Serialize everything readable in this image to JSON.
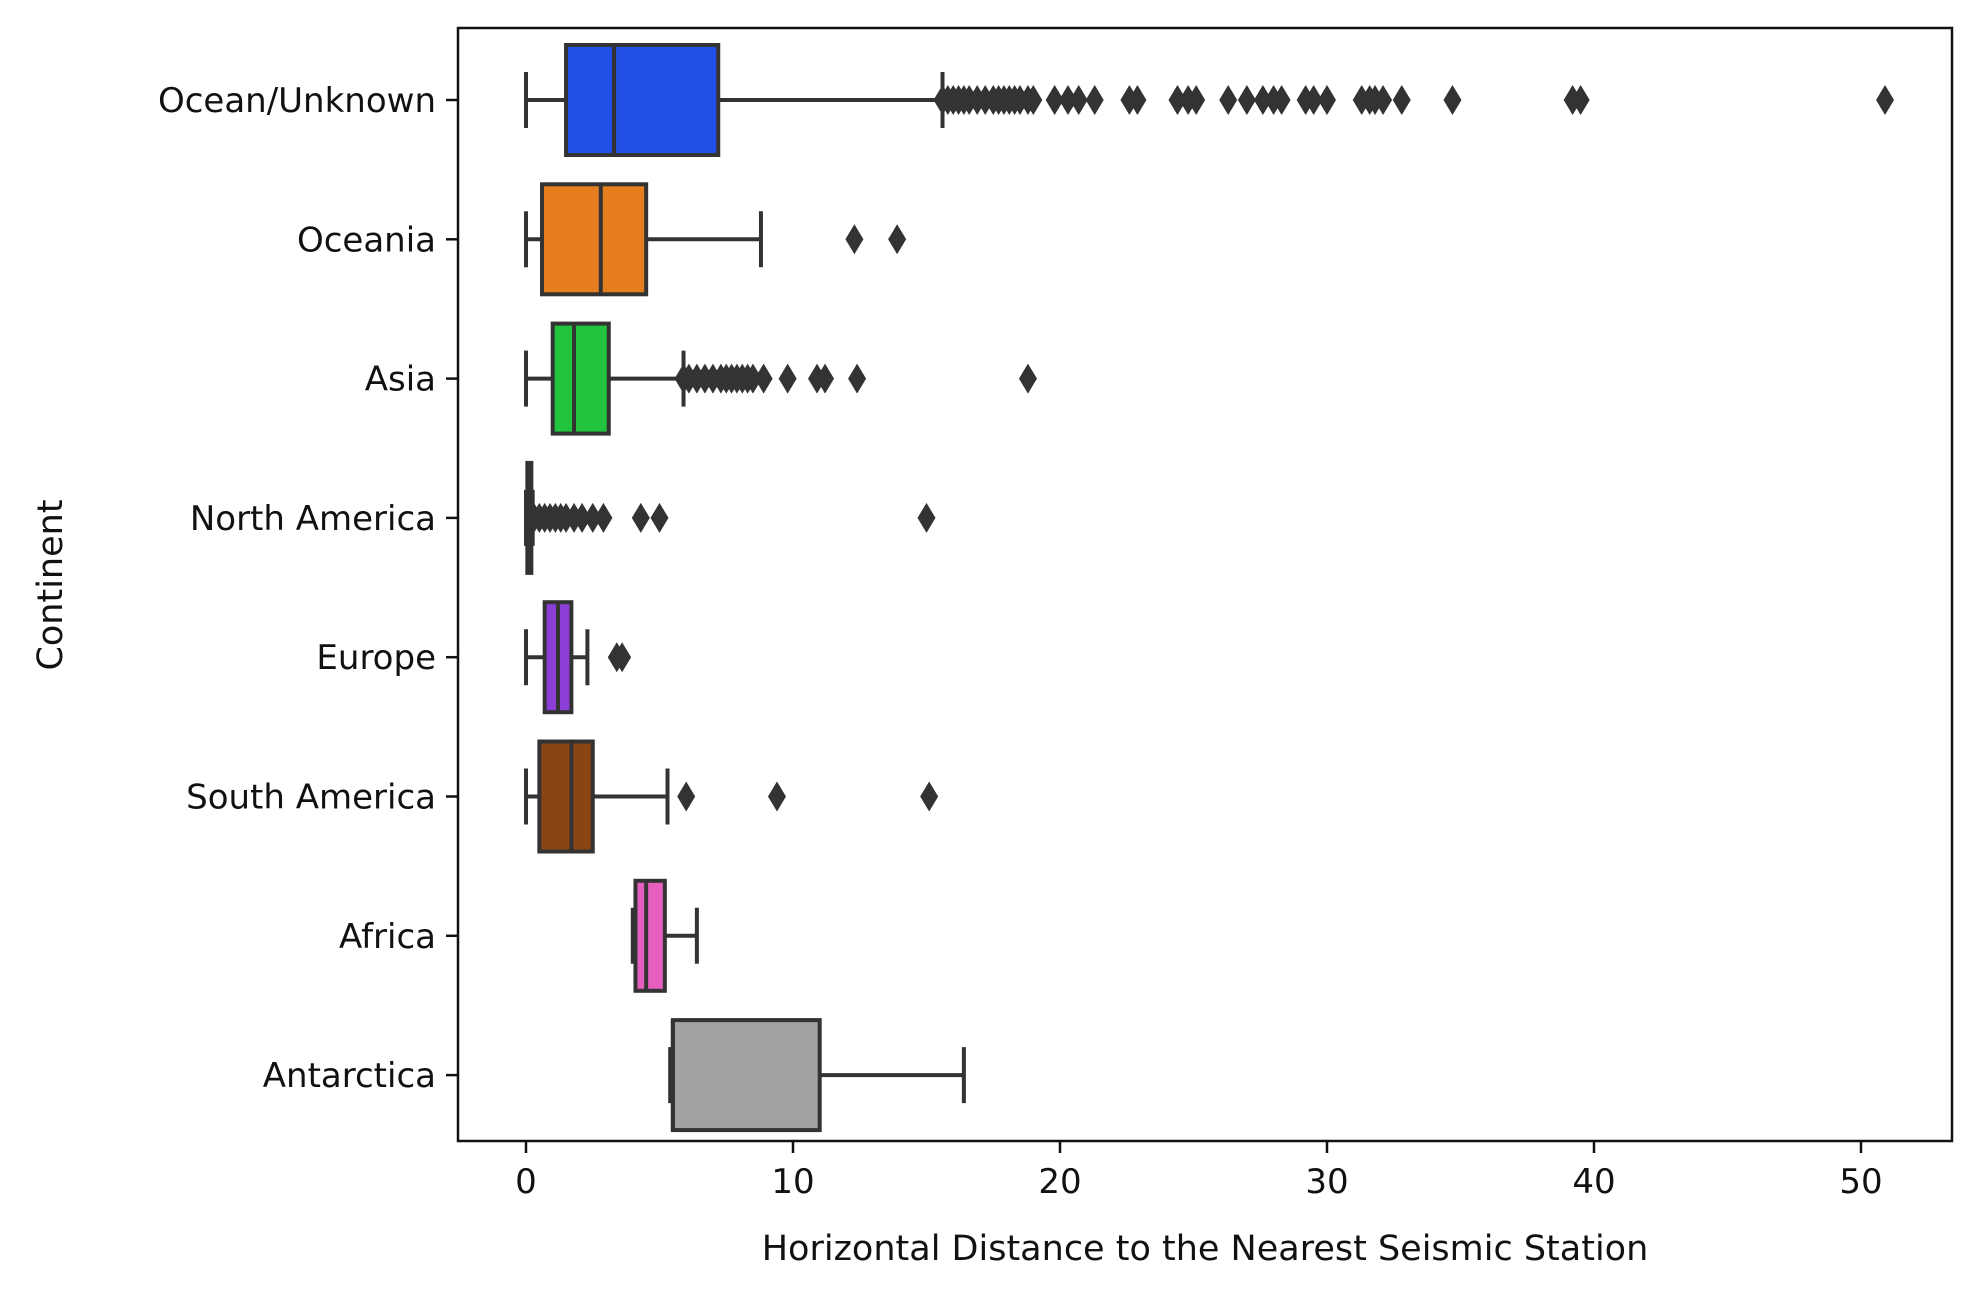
{
  "chart_data": {
    "type": "boxplot",
    "orientation": "horizontal",
    "xlabel": "Horizontal Distance to the Nearest Seismic Station",
    "ylabel": "Continent",
    "xlim": [
      -2.5,
      53.5
    ],
    "xticks": [
      0,
      10,
      20,
      30,
      40,
      50
    ],
    "grid": false,
    "categories": [
      {
        "name": "Ocean/Unknown",
        "color": "#2250e6",
        "whisker_low": 0.0,
        "q1": 1.5,
        "median": 3.3,
        "q3": 7.2,
        "whisker_high": 15.6,
        "outliers": [
          15.6,
          15.8,
          16.0,
          16.2,
          16.4,
          16.6,
          16.9,
          17.2,
          17.5,
          17.7,
          17.9,
          18.1,
          18.3,
          18.5,
          18.8,
          19.0,
          19.8,
          20.3,
          20.7,
          21.3,
          22.6,
          22.9,
          24.4,
          24.8,
          25.1,
          26.3,
          27.0,
          27.6,
          28.0,
          28.3,
          29.2,
          29.5,
          30.0,
          31.3,
          31.6,
          31.8,
          32.1,
          32.8,
          34.7,
          39.2,
          39.5,
          50.9
        ]
      },
      {
        "name": "Oceania",
        "color": "#e67e1f",
        "whisker_low": 0.0,
        "q1": 0.6,
        "median": 2.8,
        "q3": 4.5,
        "whisker_high": 8.8,
        "outliers": [
          12.3,
          13.9
        ]
      },
      {
        "name": "Asia",
        "color": "#22c43e",
        "whisker_low": 0.0,
        "q1": 1.0,
        "median": 1.8,
        "q3": 3.1,
        "whisker_high": 5.9,
        "outliers": [
          5.9,
          6.1,
          6.4,
          6.7,
          7.0,
          7.3,
          7.5,
          7.7,
          7.9,
          8.1,
          8.3,
          8.5,
          8.9,
          9.8,
          10.9,
          11.2,
          12.4,
          18.8
        ]
      },
      {
        "name": "North America",
        "color": "#e02b2b",
        "whisker_low": 0.0,
        "q1": 0.05,
        "median": 0.1,
        "q3": 0.15,
        "whisker_high": 0.25,
        "outliers": [
          0.3,
          0.5,
          0.7,
          0.9,
          1.1,
          1.3,
          1.5,
          1.8,
          2.1,
          2.5,
          2.9,
          4.3,
          5.0,
          15.0
        ]
      },
      {
        "name": "Europe",
        "color": "#8b3fd8",
        "whisker_low": 0.0,
        "q1": 0.7,
        "median": 1.2,
        "q3": 1.7,
        "whisker_high": 2.3,
        "outliers": [
          3.4,
          3.6
        ]
      },
      {
        "name": "South America",
        "color": "#8b4513",
        "whisker_low": 0.0,
        "q1": 0.5,
        "median": 1.7,
        "q3": 2.5,
        "whisker_high": 5.3,
        "outliers": [
          6.0,
          9.4,
          15.1
        ]
      },
      {
        "name": "Africa",
        "color": "#e65fbf",
        "whisker_low": 4.0,
        "q1": 4.1,
        "median": 4.5,
        "q3": 5.2,
        "whisker_high": 6.4,
        "outliers": []
      },
      {
        "name": "Antarctica",
        "color": "#a2a2a2",
        "whisker_low": 5.4,
        "q1": 5.5,
        "median": 5.5,
        "q3": 11.0,
        "whisker_high": 16.4,
        "outliers": []
      }
    ]
  }
}
